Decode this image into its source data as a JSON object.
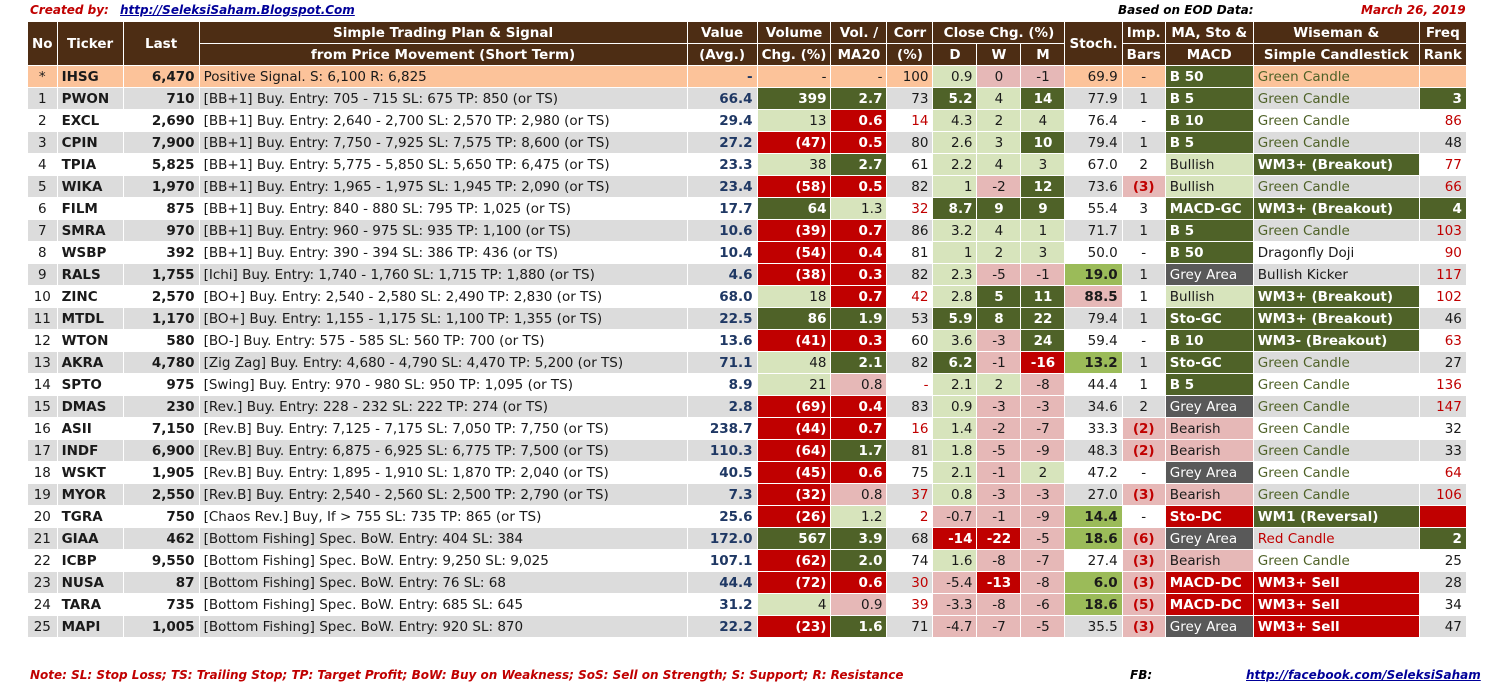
{
  "header": {
    "created_by": "Created by:",
    "blog_url": "http://SeleksiSaham.Blogspot.Com",
    "based_on": "Based on EOD Data:",
    "date": "March 26, 2019"
  },
  "columns": {
    "no": "No",
    "ticker": "Ticker",
    "last": "Last",
    "plan_1": "Simple Trading Plan & Signal",
    "plan_2": "from Price Movement (Short Term)",
    "value_1": "Value",
    "value_2": "(Avg.)",
    "volume_1": "Volume",
    "volume_2": "Chg. (%)",
    "vol_1": "Vol. /",
    "vol_2": "MA20",
    "corr_1": "Corr",
    "corr_2": "(%)",
    "close_1": "Close Chg. (%)",
    "close_d": "D",
    "close_w": "W",
    "close_m": "M",
    "stoch": "Stoch.",
    "imp_1": "Imp.",
    "imp_2": "Bars",
    "ma_1": "MA, Sto &",
    "ma_2": "MACD",
    "wise_1": "Wiseman  &",
    "wise_2": "Simple Candlestick",
    "freq_1": "Freq",
    "freq_2": "Rank"
  },
  "colors": {
    "header_bg": "#4d2d14",
    "row_a": "#dcdcdc",
    "row_b": "#ffffff",
    "ihsg": "#fcc39a",
    "green_dark": "#4f6228",
    "green_mid": "#9bbb59",
    "green_light": "#d7e4bc",
    "red_dark": "#c00000",
    "red_light": "#e6b8b7",
    "grey": "#595959"
  },
  "rows": [
    {
      "no": "*",
      "ticker": "IHSG",
      "last": "6,470",
      "plan": "Positive Signal.  S:  6,100  R:  6,825",
      "value": "-",
      "volume": "-",
      "vol": "-",
      "corr": "100",
      "d": "0.9",
      "w": "0",
      "m": "-1",
      "stoch": "69.9",
      "imp": "-",
      "ma": "B 50",
      "wise": "Green Candle",
      "freq": ""
    },
    {
      "no": "1",
      "ticker": "PWON",
      "last": "710",
      "plan": "[BB+1] Buy.  Entry:  705 -  715  SL:  675  TP:  850  (or TS)",
      "value": "66.4",
      "volume": "399",
      "vol": "2.7",
      "corr": "73",
      "d": "5.2",
      "w": "4",
      "m": "14",
      "stoch": "77.9",
      "imp": "1",
      "ma": "B 5",
      "wise": "Green Candle",
      "freq": "3"
    },
    {
      "no": "2",
      "ticker": "EXCL",
      "last": "2,690",
      "plan": "[BB+1] Buy.  Entry:  2,640 -  2,700  SL:  2,570  TP:  2,980  (or TS)",
      "value": "29.4",
      "volume": "13",
      "vol": "0.6",
      "corr": "14",
      "d": "4.3",
      "w": "2",
      "m": "4",
      "stoch": "76.4",
      "imp": "-",
      "ma": "B 10",
      "wise": "Green Candle",
      "freq": "86"
    },
    {
      "no": "3",
      "ticker": "CPIN",
      "last": "7,900",
      "plan": "[BB+1] Buy.  Entry:  7,750 -  7,925  SL:  7,575  TP:  8,600  (or TS)",
      "value": "27.2",
      "volume": "(47)",
      "vol": "0.5",
      "corr": "80",
      "d": "2.6",
      "w": "3",
      "m": "10",
      "stoch": "79.4",
      "imp": "1",
      "ma": "B 5",
      "wise": "Green Candle",
      "freq": "48"
    },
    {
      "no": "4",
      "ticker": "TPIA",
      "last": "5,825",
      "plan": "[BB+1] Buy.  Entry:  5,775 -  5,850  SL:  5,650  TP:  6,475  (or TS)",
      "value": "23.3",
      "volume": "38",
      "vol": "2.7",
      "corr": "61",
      "d": "2.2",
      "w": "4",
      "m": "3",
      "stoch": "67.0",
      "imp": "2",
      "ma": "Bullish",
      "wise": "WM3+ (Breakout)",
      "freq": "77"
    },
    {
      "no": "5",
      "ticker": "WIKA",
      "last": "1,970",
      "plan": "[BB+1] Buy.  Entry:  1,965 -  1,975  SL:  1,945  TP:  2,090  (or TS)",
      "value": "23.4",
      "volume": "(58)",
      "vol": "0.5",
      "corr": "82",
      "d": "1",
      "w": "-2",
      "m": "12",
      "stoch": "73.6",
      "imp": "(3)",
      "ma": "Bullish",
      "wise": "Green Candle",
      "freq": "66"
    },
    {
      "no": "6",
      "ticker": "FILM",
      "last": "875",
      "plan": "[BB+1] Buy.  Entry:  840 -  880  SL:  795  TP:  1,025  (or TS)",
      "value": "17.7",
      "volume": "64",
      "vol": "1.3",
      "corr": "32",
      "d": "8.7",
      "w": "9",
      "m": "9",
      "stoch": "55.4",
      "imp": "3",
      "ma": "MACD-GC",
      "wise": "WM3+ (Breakout)",
      "freq": "4"
    },
    {
      "no": "7",
      "ticker": "SMRA",
      "last": "970",
      "plan": "[BB+1] Buy.  Entry:  960 -  975  SL:  935  TP:  1,100  (or TS)",
      "value": "10.6",
      "volume": "(39)",
      "vol": "0.7",
      "corr": "86",
      "d": "3.2",
      "w": "4",
      "m": "1",
      "stoch": "71.7",
      "imp": "1",
      "ma": "B 5",
      "wise": "Green Candle",
      "freq": "103"
    },
    {
      "no": "8",
      "ticker": "WSBP",
      "last": "392",
      "plan": "[BB+1] Buy.  Entry:  390 -  394  SL:  386  TP:  436  (or TS)",
      "value": "10.4",
      "volume": "(54)",
      "vol": "0.4",
      "corr": "81",
      "d": "1",
      "w": "2",
      "m": "3",
      "stoch": "50.0",
      "imp": "-",
      "ma": "B 50",
      "wise": "Dragonfly Doji",
      "freq": "90"
    },
    {
      "no": "9",
      "ticker": "RALS",
      "last": "1,755",
      "plan": "[Ichi] Buy.  Entry:  1,740 -  1,760  SL:  1,715  TP:  1,880  (or TS)",
      "value": "4.6",
      "volume": "(38)",
      "vol": "0.3",
      "corr": "82",
      "d": "2.3",
      "w": "-5",
      "m": "-1",
      "stoch": "19.0",
      "imp": "1",
      "ma": "Grey Area",
      "wise": "Bullish Kicker",
      "freq": "117"
    },
    {
      "no": "10",
      "ticker": "ZINC",
      "last": "2,570",
      "plan": "[BO+] Buy.  Entry:  2,540 -  2,580  SL:  2,490  TP:  2,830  (or TS)",
      "value": "68.0",
      "volume": "18",
      "vol": "0.7",
      "corr": "42",
      "d": "2.8",
      "w": "5",
      "m": "11",
      "stoch": "88.5",
      "imp": "1",
      "ma": "Bullish",
      "wise": "WM3+ (Breakout)",
      "freq": "102"
    },
    {
      "no": "11",
      "ticker": "MTDL",
      "last": "1,170",
      "plan": "[BO+] Buy.  Entry:  1,155 -  1,175  SL:  1,100  TP:  1,355  (or TS)",
      "value": "22.5",
      "volume": "86",
      "vol": "1.9",
      "corr": "53",
      "d": "5.9",
      "w": "8",
      "m": "22",
      "stoch": "79.4",
      "imp": "1",
      "ma": "Sto-GC",
      "wise": "WM3+ (Breakout)",
      "freq": "46"
    },
    {
      "no": "12",
      "ticker": "WTON",
      "last": "580",
      "plan": "[BO-] Buy.  Entry:  575 -  585  SL:  560  TP:  700  (or TS)",
      "value": "13.6",
      "volume": "(41)",
      "vol": "0.3",
      "corr": "60",
      "d": "3.6",
      "w": "-3",
      "m": "24",
      "stoch": "59.4",
      "imp": "-",
      "ma": "B 10",
      "wise": "WM3- (Breakout)",
      "freq": "63"
    },
    {
      "no": "13",
      "ticker": "AKRA",
      "last": "4,780",
      "plan": "[Zig Zag] Buy.  Entry:  4,680 -  4,790  SL:  4,470  TP:  5,200  (or TS)",
      "value": "71.1",
      "volume": "48",
      "vol": "2.1",
      "corr": "82",
      "d": "6.2",
      "w": "-1",
      "m": "-16",
      "stoch": "13.2",
      "imp": "1",
      "ma": "Sto-GC",
      "wise": "Green Candle",
      "freq": "27"
    },
    {
      "no": "14",
      "ticker": "SPTO",
      "last": "975",
      "plan": "[Swing] Buy.  Entry:  970 -  980  SL:  950  TP:  1,095  (or TS)",
      "value": "8.9",
      "volume": "21",
      "vol": "0.8",
      "corr": "-",
      "d": "2.1",
      "w": "2",
      "m": "-8",
      "stoch": "44.4",
      "imp": "1",
      "ma": "B 5",
      "wise": "Green Candle",
      "freq": "136"
    },
    {
      "no": "15",
      "ticker": "DMAS",
      "last": "230",
      "plan": "[Rev.] Buy.  Entry:  228 -  232  SL:  222  TP:  274  (or TS)",
      "value": "2.8",
      "volume": "(69)",
      "vol": "0.4",
      "corr": "83",
      "d": "0.9",
      "w": "-3",
      "m": "-3",
      "stoch": "34.6",
      "imp": "2",
      "ma": "Grey Area",
      "wise": "Green Candle",
      "freq": "147"
    },
    {
      "no": "16",
      "ticker": "ASII",
      "last": "7,150",
      "plan": "[Rev.B] Buy.  Entry:  7,125 -  7,175  SL:  7,050  TP:  7,750  (or TS)",
      "value": "238.7",
      "volume": "(44)",
      "vol": "0.7",
      "corr": "16",
      "d": "1.4",
      "w": "-2",
      "m": "-7",
      "stoch": "33.3",
      "imp": "(2)",
      "ma": "Bearish",
      "wise": "Green Candle",
      "freq": "32"
    },
    {
      "no": "17",
      "ticker": "INDF",
      "last": "6,900",
      "plan": "[Rev.B] Buy.  Entry:  6,875 -  6,925  SL:  6,775  TP:  7,500  (or TS)",
      "value": "110.3",
      "volume": "(64)",
      "vol": "1.7",
      "corr": "81",
      "d": "1.8",
      "w": "-5",
      "m": "-9",
      "stoch": "48.3",
      "imp": "(2)",
      "ma": "Bearish",
      "wise": "Green Candle",
      "freq": "33"
    },
    {
      "no": "18",
      "ticker": "WSKT",
      "last": "1,905",
      "plan": "[Rev.B] Buy.  Entry:  1,895 -  1,910  SL:  1,870  TP:  2,040  (or TS)",
      "value": "40.5",
      "volume": "(45)",
      "vol": "0.6",
      "corr": "75",
      "d": "2.1",
      "w": "-1",
      "m": "2",
      "stoch": "47.2",
      "imp": "-",
      "ma": "Grey Area",
      "wise": "Green Candle",
      "freq": "64"
    },
    {
      "no": "19",
      "ticker": "MYOR",
      "last": "2,550",
      "plan": "[Rev.B] Buy.  Entry:  2,540 -  2,560  SL:  2,500  TP:  2,790  (or TS)",
      "value": "7.3",
      "volume": "(32)",
      "vol": "0.8",
      "corr": "37",
      "d": "0.8",
      "w": "-3",
      "m": "-3",
      "stoch": "27.0",
      "imp": "(3)",
      "ma": "Bearish",
      "wise": "Green Candle",
      "freq": "106"
    },
    {
      "no": "20",
      "ticker": "TGRA",
      "last": "750",
      "plan": "[Chaos Rev.] Buy, If >   755  SL:  735  TP:  865  (or TS)",
      "value": "25.6",
      "volume": "(26)",
      "vol": "1.2",
      "corr": "2",
      "d": "-0.7",
      "w": "-1",
      "m": "-9",
      "stoch": "14.4",
      "imp": "-",
      "ma": "Sto-DC",
      "wise": "WM1 (Reversal)",
      "freq": ""
    },
    {
      "no": "21",
      "ticker": "GIAA",
      "last": "462",
      "plan": "[Bottom Fishing]  Spec. BoW.  Entry:   404  SL:   384",
      "value": "172.0",
      "volume": "567",
      "vol": "3.9",
      "corr": "68",
      "d": "-14",
      "w": "-22",
      "m": "-5",
      "stoch": "18.6",
      "imp": "(6)",
      "ma": "Grey Area",
      "wise": "Red Candle",
      "freq": "2"
    },
    {
      "no": "22",
      "ticker": "ICBP",
      "last": "9,550",
      "plan": "[Bottom Fishing]  Spec. BoW.  Entry:  9,250  SL:  9,025",
      "value": "107.1",
      "volume": "(62)",
      "vol": "2.0",
      "corr": "74",
      "d": "1.6",
      "w": "-8",
      "m": "-7",
      "stoch": "27.4",
      "imp": "(3)",
      "ma": "Bearish",
      "wise": "Green Candle",
      "freq": "25"
    },
    {
      "no": "23",
      "ticker": "NUSA",
      "last": "87",
      "plan": "[Bottom Fishing]  Spec. BoW.  Entry:    76  SL:    68",
      "value": "44.4",
      "volume": "(72)",
      "vol": "0.6",
      "corr": "30",
      "d": "-5.4",
      "w": "-13",
      "m": "-8",
      "stoch": "6.0",
      "imp": "(3)",
      "ma": "MACD-DC",
      "wise": "WM3+ Sell",
      "freq": "28"
    },
    {
      "no": "24",
      "ticker": "TARA",
      "last": "735",
      "plan": "[Bottom Fishing]  Spec. BoW.  Entry:   685  SL:   645",
      "value": "31.2",
      "volume": "4",
      "vol": "0.9",
      "corr": "39",
      "d": "-3.3",
      "w": "-8",
      "m": "-6",
      "stoch": "18.6",
      "imp": "(5)",
      "ma": "MACD-DC",
      "wise": "WM3+ Sell",
      "freq": "34"
    },
    {
      "no": "25",
      "ticker": "MAPI",
      "last": "1,005",
      "plan": "[Bottom Fishing]  Spec. BoW.  Entry:   920  SL:   870",
      "value": "22.2",
      "volume": "(23)",
      "vol": "1.6",
      "corr": "71",
      "d": "-4.7",
      "w": "-7",
      "m": "-5",
      "stoch": "35.5",
      "imp": "(3)",
      "ma": "Grey Area",
      "wise": "WM3+ Sell",
      "freq": "47"
    }
  ],
  "footer": {
    "note": "Note:  SL: Stop Loss; TS: Trailing Stop; TP: Target Profit; BoW: Buy on Weakness; SoS: Sell on Strength; S: Support; R: Resistance",
    "fb_label": "FB:",
    "fb_url": "http://facebook.com/SeleksiSaham"
  }
}
